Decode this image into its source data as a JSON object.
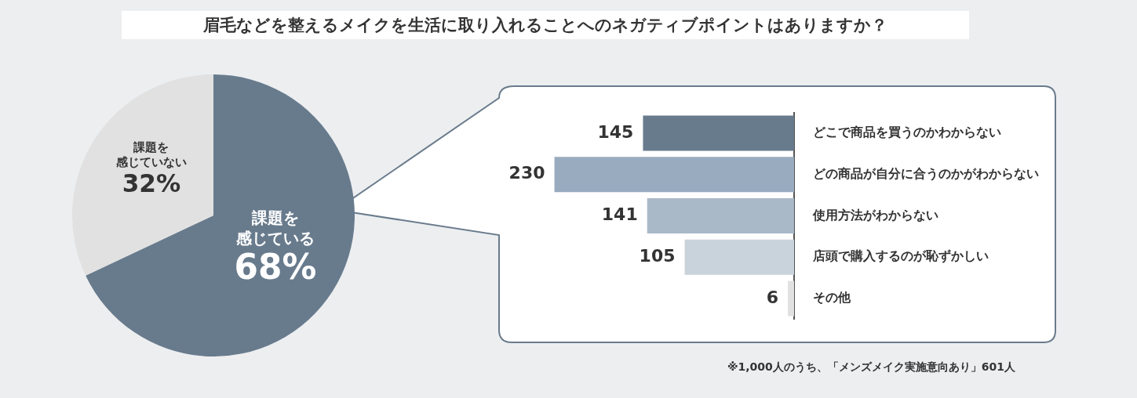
{
  "chart_data": [
    {
      "type": "pie",
      "title": "眉毛などを整えるメイクを生活に取り入れることへのネガティブポイントはありますか？",
      "categories": [
        "課題を感じている",
        "課題を感じていない"
      ],
      "values": [
        68,
        32
      ],
      "colors": [
        "#687b8d",
        "#e1e1e1"
      ],
      "value_labels": [
        "68%",
        "32%"
      ]
    },
    {
      "type": "bar",
      "orientation": "horizontal",
      "categories": [
        "どこで商品を買うのかわからない",
        "どの商品が自分に合うのかがわからない",
        "使用方法がわからない",
        "店頭で購入するのが恥ずかしい",
        "その他"
      ],
      "values": [
        145,
        230,
        141,
        105,
        6
      ],
      "colors": [
        "#687b8d",
        "#98abbf",
        "#a9b9c8",
        "#c9d3dc",
        "#e1e1e1"
      ],
      "data_labels": true,
      "annotations": [
        "※1,000人のうち、「メンズメイク実施意向あり」601人"
      ]
    }
  ]
}
